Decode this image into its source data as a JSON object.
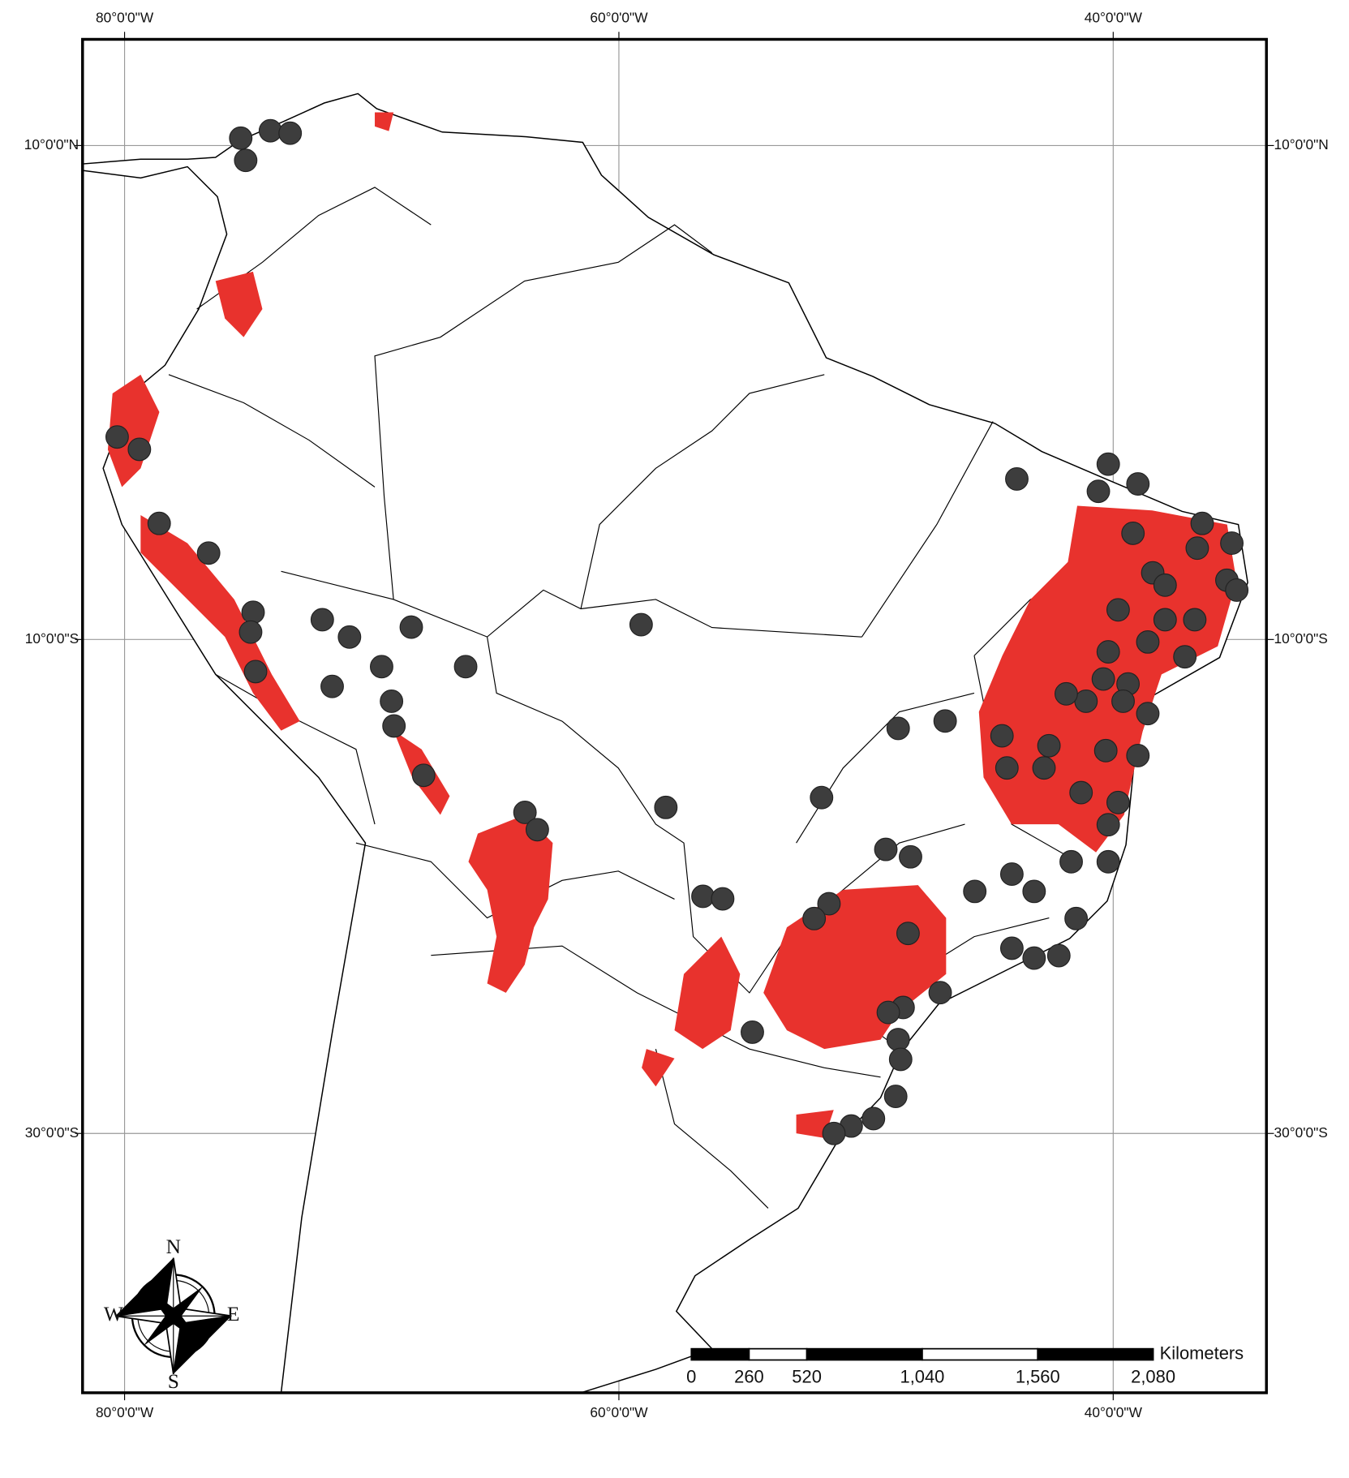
{
  "map": {
    "xlim": [
      -81.7,
      -33.8
    ],
    "ylim": [
      -40.5,
      14.3
    ],
    "xticks": [
      {
        "value": -80,
        "label": "80°0'0\"W"
      },
      {
        "value": -60,
        "label": "60°0'0\"W"
      },
      {
        "value": -40,
        "label": "40°0'0\"W"
      }
    ],
    "yticks": [
      {
        "value": 10,
        "label": "10°0'0\"N"
      },
      {
        "value": -10,
        "label": "10°0'0\"S"
      },
      {
        "value": -30,
        "label": "30°0'0\"S"
      }
    ],
    "points": {
      "lon": [
        -75.3,
        -74.1,
        -73.3,
        -75.1,
        -80.3,
        -79.4,
        -78.6,
        -76.6,
        -74.8,
        -74.9,
        -74.7,
        -72.0,
        -70.9,
        -68.4,
        -69.6,
        -69.2,
        -69.1,
        -67.9,
        -71.6,
        -66.2,
        -59.1,
        -58.1,
        -63.8,
        -63.3,
        -43.9,
        -40.2,
        -40.6,
        -39.0,
        -39.2,
        -36.4,
        -36.6,
        -35.2,
        -35.4,
        -35.0,
        -38.4,
        -37.9,
        -39.8,
        -37.9,
        -36.7,
        -38.6,
        -40.2,
        -37.1,
        -40.4,
        -39.4,
        -39.6,
        -41.1,
        -38.6,
        -41.9,
        -44.5,
        -42.6,
        -44.3,
        -42.8,
        -41.3,
        -40.3,
        -39.0,
        -39.8,
        -40.2,
        -40.2,
        -41.7,
        -44.1,
        -43.2,
        -45.6,
        -41.5,
        -42.2,
        -44.1,
        -43.2,
        -47.0,
        -48.7,
        -46.8,
        -51.8,
        -49.2,
        -48.2,
        -51.5,
        -52.1,
        -48.3,
        -56.6,
        -55.8,
        -48.5,
        -49.1,
        -48.7,
        -48.6,
        -48.8,
        -49.7,
        -50.6,
        -51.3,
        -54.6
      ],
      "lat": [
        10.3,
        10.6,
        10.5,
        9.4,
        -1.8,
        -2.3,
        -5.3,
        -6.5,
        -8.9,
        -9.7,
        -11.3,
        -9.2,
        -9.9,
        -9.5,
        -11.1,
        -12.5,
        -13.5,
        -15.5,
        -11.9,
        -11.1,
        -9.4,
        -16.8,
        -17.0,
        -17.7,
        -3.5,
        -2.9,
        -4.0,
        -3.7,
        -5.7,
        -5.3,
        -6.3,
        -6.1,
        -7.6,
        -8.0,
        -7.3,
        -7.8,
        -8.8,
        -9.2,
        -9.2,
        -10.1,
        -10.5,
        -10.7,
        -11.6,
        -11.8,
        -12.5,
        -12.5,
        -13.0,
        -12.2,
        -13.9,
        -14.3,
        -15.2,
        -15.2,
        -16.2,
        -14.5,
        -14.7,
        -16.6,
        -17.5,
        -19.0,
        -19.0,
        -19.5,
        -20.2,
        -20.2,
        -21.3,
        -22.8,
        -22.5,
        -22.9,
        -24.3,
        -13.6,
        -13.3,
        -16.4,
        -18.5,
        -18.8,
        -20.7,
        -21.3,
        -21.9,
        -20.4,
        -20.5,
        -24.9,
        -25.1,
        -26.2,
        -27.0,
        -28.5,
        -29.4,
        -29.7,
        -30.0,
        -25.9
      ]
    }
  },
  "scale_bar": {
    "unit": "Kilometers",
    "ticks": [
      0,
      260,
      520,
      {
        "value": 1040,
        "label": "1,040"
      },
      {
        "value": 1560,
        "label": "1,560"
      },
      {
        "value": 2080,
        "label": "2,080"
      }
    ]
  },
  "compass": {
    "north": "N",
    "east": "E",
    "south": "S",
    "west": "W"
  }
}
